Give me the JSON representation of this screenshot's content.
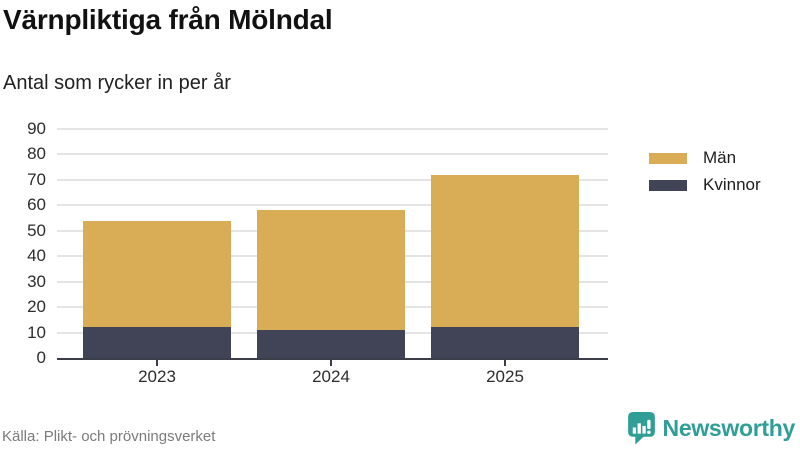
{
  "title": "Värnpliktiga från Mölndal",
  "subtitle": "Antal som rycker in per år",
  "source": "Källa: Plikt- och prövningsverket",
  "branding": {
    "name": "Newsworthy",
    "color": "#2f9e96",
    "icon": "newsworthy-chart-bubble-icon"
  },
  "chart_data": {
    "type": "bar",
    "stacked": true,
    "title": "Värnpliktiga från Mölndal",
    "subtitle": "Antal som rycker in per år",
    "categories": [
      "2023",
      "2024",
      "2025"
    ],
    "series": [
      {
        "name": "Män",
        "color": "#d9ad55",
        "values": [
          42,
          47,
          60
        ]
      },
      {
        "name": "Kvinnor",
        "color": "#414457",
        "values": [
          12,
          11,
          12
        ]
      }
    ],
    "stack_totals": [
      54,
      58,
      72
    ],
    "xlabel": "",
    "ylabel": "",
    "ylim": [
      0,
      90
    ],
    "ytick_step": 10,
    "grid": true,
    "legend_position": "right",
    "axis_color": "#3b3e48",
    "gridline_color": "#e4e4e4"
  }
}
